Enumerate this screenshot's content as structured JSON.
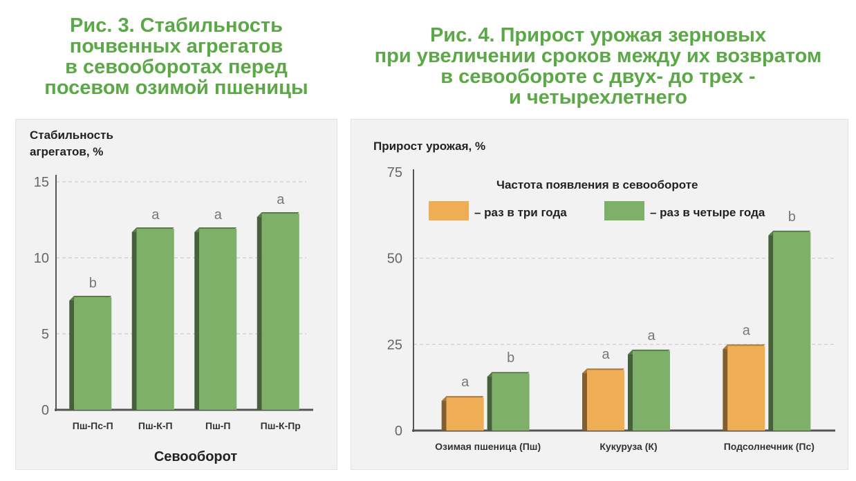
{
  "colors": {
    "title": "#5aa846",
    "green_bar": "#7fb069",
    "orange_bar": "#efad56",
    "panel_bg": "#f2f2f2"
  },
  "chart_data": [
    {
      "type": "bar",
      "title": [
        "Рис. 3. Стабильность",
        "почвенных агрегатов",
        "в севооборотах перед",
        "посевом озимой пшеницы"
      ],
      "ylabel": [
        "Стабильность",
        "агрегатов, %"
      ],
      "xlabel": "Севооборот",
      "categories": [
        "Пш-Пс-П",
        "Пш-К-П",
        "Пш-П",
        "Пш-К-Пр"
      ],
      "values": [
        7.5,
        12,
        12,
        13
      ],
      "data_labels": [
        "b",
        "a",
        "a",
        "a"
      ],
      "ylim": [
        0,
        15
      ],
      "yticks": [
        "0",
        "5",
        "10",
        "15"
      ],
      "grid": true
    },
    {
      "type": "bar",
      "title": [
        "Рис. 4. Прирост урожая зерновых",
        "при увеличении сроков между их возвратом",
        "в севообороте с двух- до трех -",
        "и четырехлетнего"
      ],
      "ylabel": "Прирост урожая, %",
      "xlabel": "",
      "legend_title": "Частота появления в севообороте",
      "legend_position": "top",
      "categories": [
        "Озимая пшеница (Пш)",
        "Кукуруза (К)",
        "Подсолнечник (Пс)"
      ],
      "series": [
        {
          "name": "– раз в три года",
          "values": [
            10,
            18,
            25
          ],
          "labels": [
            "a",
            "a",
            "a"
          ]
        },
        {
          "name": "– раз в четыре года",
          "values": [
            17,
            23.5,
            58
          ],
          "labels": [
            "b",
            "a",
            "b"
          ]
        }
      ],
      "ylim": [
        0,
        75
      ],
      "yticks": [
        "0",
        "25",
        "50",
        "75"
      ],
      "grid": true
    }
  ]
}
